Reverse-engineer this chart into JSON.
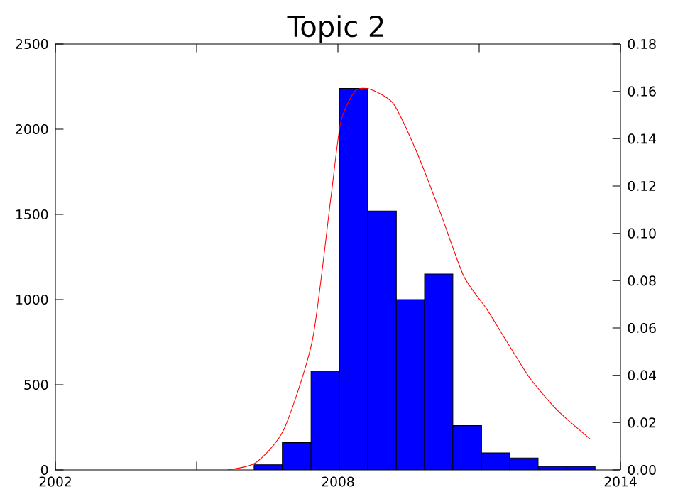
{
  "chart_data": {
    "type": "histogram",
    "title": "Topic 2",
    "series": [
      {
        "color": "#0000ff",
        "bins": [
          2006.22,
          2006.82,
          2007.43,
          2008.03,
          2008.63,
          2009.24,
          2009.84,
          2010.44,
          2011.05,
          2011.65,
          2012.25,
          2012.86,
          2013.46
        ],
        "values": [
          30,
          160,
          580,
          2240,
          1520,
          1000,
          1150,
          260,
          100,
          70,
          20,
          20
        ]
      },
      {
        "type": "line",
        "axis": "y2",
        "color": "#ff0000",
        "x": [
          2005.65,
          2006.25,
          2006.85,
          2007.46,
          2007.85,
          2008.06,
          2008.36,
          2008.66,
          2009.17,
          2009.66,
          2010.17,
          2010.67,
          2011.16,
          2011.47,
          2012.07,
          2012.67,
          2013.36
        ],
        "values": [
          0.0,
          0.003,
          0.017,
          0.055,
          0.115,
          0.147,
          0.16,
          0.161,
          0.155,
          0.135,
          0.109,
          0.082,
          0.068,
          0.058,
          0.039,
          0.025,
          0.013
        ]
      }
    ],
    "xlim": [
      2002,
      2014
    ],
    "xticks": [
      2002,
      {
        "value": 2005,
        "label": null
      },
      2008,
      {
        "value": 2011,
        "label": null
      },
      2014
    ],
    "ylim": [
      0,
      2500
    ],
    "yticks": [
      0,
      500,
      1000,
      1500,
      2000,
      2500
    ],
    "y2lim": [
      0,
      0.18
    ],
    "y2ticks": [
      {
        "value": 0,
        "label": "0.00"
      },
      {
        "value": 0.02,
        "label": "0.02"
      },
      {
        "value": 0.04,
        "label": "0.04"
      },
      {
        "value": 0.06,
        "label": "0.06"
      },
      {
        "value": 0.08,
        "label": "0.08"
      },
      {
        "value": 0.1,
        "label": "0.10"
      },
      {
        "value": 0.12,
        "label": "0.12"
      },
      {
        "value": 0.14,
        "label": "0.14"
      },
      {
        "value": 0.16,
        "label": "0.16"
      },
      {
        "value": 0.18,
        "label": "0.18"
      }
    ],
    "grid": false
  }
}
